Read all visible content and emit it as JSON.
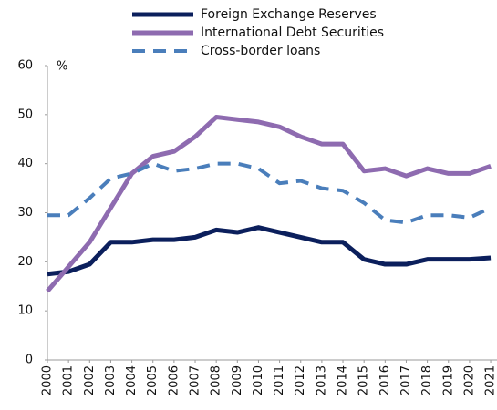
{
  "chart_data": {
    "type": "line",
    "y_unit": "%",
    "x": [
      2000,
      2001,
      2002,
      2003,
      2004,
      2005,
      2006,
      2007,
      2008,
      2009,
      2010,
      2011,
      2012,
      2013,
      2014,
      2015,
      2016,
      2017,
      2018,
      2019,
      2020,
      2021
    ],
    "series": [
      {
        "name": "Foreign Exchange Reserves",
        "color": "#0b1f5c",
        "style": "solid",
        "values": [
          17.5,
          18,
          19.5,
          24,
          24,
          24.5,
          24.5,
          25,
          26.5,
          26,
          27,
          26,
          25,
          24,
          24,
          20.5,
          19.5,
          19.5,
          20.5,
          20.5,
          20.5,
          20.8
        ]
      },
      {
        "name": "International Debt Securities",
        "color": "#8e6bb0",
        "style": "solid",
        "values": [
          14,
          19,
          24,
          31,
          38,
          41.5,
          42.5,
          45.5,
          49.5,
          49,
          48.5,
          47.5,
          45.5,
          44,
          44,
          38.5,
          39,
          37.5,
          39,
          38,
          38,
          39.5
        ]
      },
      {
        "name": "Cross-border loans",
        "color": "#4a7ebb",
        "style": "dashed",
        "values": [
          29.5,
          29.5,
          33,
          37,
          38,
          40,
          38.5,
          39,
          40,
          40,
          39,
          36,
          36.5,
          35,
          34.5,
          32,
          28.5,
          28,
          29.5,
          29.5,
          29,
          31
        ]
      }
    ],
    "xlim": [
      2000,
      2021.3
    ],
    "xticks": [
      2000,
      2001,
      2002,
      2003,
      2004,
      2005,
      2006,
      2007,
      2008,
      2009,
      2010,
      2011,
      2012,
      2013,
      2014,
      2015,
      2016,
      2017,
      2018,
      2019,
      2020,
      2021
    ],
    "ylim": [
      0,
      60
    ],
    "yticks": [
      0,
      10,
      20,
      30,
      40,
      50,
      60
    ],
    "grid": false,
    "legend": "top"
  }
}
